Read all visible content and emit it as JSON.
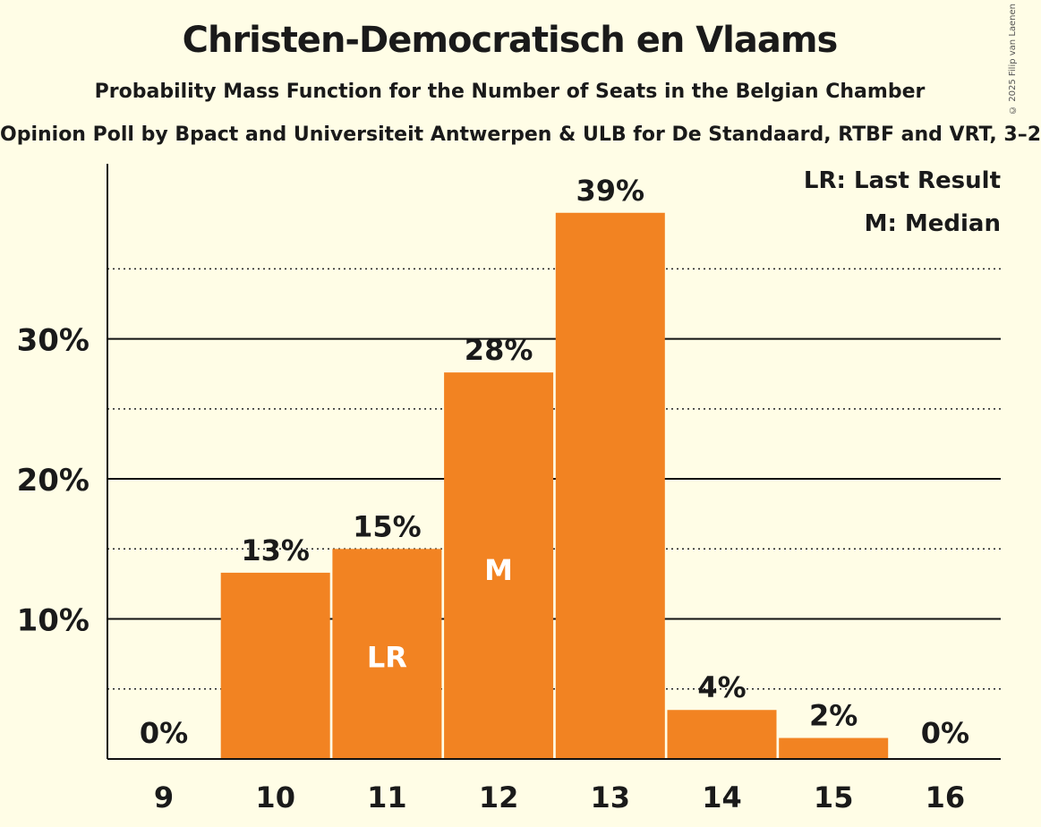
{
  "title": "Christen-Democratisch en Vlaams",
  "subtitle": "Probability Mass Function for the Number of Seats in the Belgian Chamber",
  "source": "Opinion Poll by Bpact and Universiteit Antwerpen & ULB for De Standaard, RTBF and VRT, 3–2",
  "copyright": "© 2025 Filip van Laenen",
  "chart_data": {
    "type": "bar",
    "categories": [
      "9",
      "10",
      "11",
      "12",
      "13",
      "14",
      "15",
      "16"
    ],
    "values": [
      0,
      13.3,
      15.0,
      27.6,
      39.0,
      3.5,
      1.5,
      0
    ],
    "value_labels": [
      "0%",
      "13%",
      "15%",
      "28%",
      "39%",
      "4%",
      "2%",
      "0%"
    ],
    "bar_markers": {
      "11": "LR",
      "12": "M"
    },
    "yticks": [
      10,
      20,
      30
    ],
    "ytick_labels": [
      "10%",
      "20%",
      "30%"
    ],
    "ylim": [
      0,
      42.5
    ],
    "minor_gridlines": [
      5,
      15,
      25,
      35
    ],
    "bar_color": "#f28322",
    "legend": [
      {
        "code": "LR",
        "text": "LR: Last Result"
      },
      {
        "code": "M",
        "text": "M: Median"
      }
    ],
    "legend_position": "top-right"
  }
}
